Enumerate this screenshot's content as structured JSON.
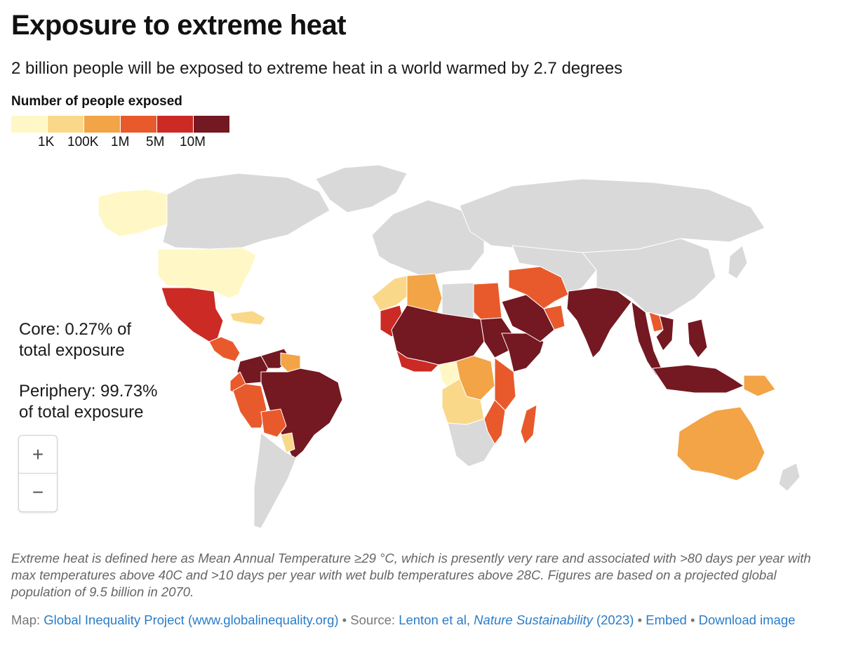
{
  "header": {
    "title": "Exposure to extreme heat",
    "subtitle": "2 billion people will be exposed to extreme heat in a world warmed by 2.7 degrees"
  },
  "legend": {
    "title": "Number of people exposed",
    "bins": [
      {
        "color": "#fff8c6"
      },
      {
        "color": "#fad88a"
      },
      {
        "color": "#f2a446"
      },
      {
        "color": "#e85a2c"
      },
      {
        "color": "#cc2a24"
      },
      {
        "color": "#741821"
      }
    ],
    "ticks": [
      "1K",
      "100K",
      "1M",
      "5M",
      "10M"
    ]
  },
  "colors": {
    "no_data": "#d9d9d9",
    "link": "#2a7cc7"
  },
  "annotations": {
    "core": "Core: 0.27% of total exposure",
    "periphery": "Periphery: 99.73% of total exposure"
  },
  "zoom": {
    "in_label": "+",
    "out_label": "−"
  },
  "footnote": "Extreme heat is defined here as Mean Annual Temperature ≥29 °C, which is presently very rare and associated with >80 days per year with max temperatures above 40C and >10 days per year with wet bulb temperatures above 28C. Figures are based on a projected global population of 9.5 billion in 2070.",
  "credits": {
    "map_prefix": "Map: ",
    "map_link": "Global Inequality Project (www.globalinequality.org)",
    "separator": " • ",
    "source_prefix": "Source: ",
    "source_link_a": "Lenton et al, ",
    "source_link_b": "Nature Sustainability",
    "source_link_c": " (2023)",
    "embed": "Embed",
    "download": "Download image"
  },
  "regions": [
    {
      "name": "Alaska",
      "bin": 0
    },
    {
      "name": "Canada",
      "bin": -1
    },
    {
      "name": "Greenland",
      "bin": -1
    },
    {
      "name": "United States",
      "bin": 0
    },
    {
      "name": "Mexico",
      "bin": 4
    },
    {
      "name": "Central America",
      "bin": 3
    },
    {
      "name": "Caribbean",
      "bin": 1
    },
    {
      "name": "Venezuela",
      "bin": 5
    },
    {
      "name": "Guianas",
      "bin": 2
    },
    {
      "name": "Colombia",
      "bin": 5
    },
    {
      "name": "Ecuador",
      "bin": 3
    },
    {
      "name": "Peru",
      "bin": 3
    },
    {
      "name": "Brazil",
      "bin": 5
    },
    {
      "name": "Bolivia",
      "bin": 3
    },
    {
      "name": "Paraguay",
      "bin": 1
    },
    {
      "name": "Southern Cone",
      "bin": -1
    },
    {
      "name": "Europe",
      "bin": -1
    },
    {
      "name": "Russia",
      "bin": -1
    },
    {
      "name": "Morocco / Western Sahara",
      "bin": 1
    },
    {
      "name": "Algeria",
      "bin": 2
    },
    {
      "name": "Libya",
      "bin": -1
    },
    {
      "name": "Egypt",
      "bin": 3
    },
    {
      "name": "Mauritania",
      "bin": 4
    },
    {
      "name": "Sahel and West Africa",
      "bin": 5
    },
    {
      "name": "Gulf of Guinea coast",
      "bin": 4
    },
    {
      "name": "Sudan",
      "bin": 5
    },
    {
      "name": "Horn of Africa",
      "bin": 5
    },
    {
      "name": "Central Africa",
      "bin": 2
    },
    {
      "name": "Gabon / Congo",
      "bin": 0
    },
    {
      "name": "Angola / Zambia",
      "bin": 1
    },
    {
      "name": "Kenya / Tanzania",
      "bin": 3
    },
    {
      "name": "Mozambique",
      "bin": 3
    },
    {
      "name": "Madagascar",
      "bin": 3
    },
    {
      "name": "Southern Africa",
      "bin": -1
    },
    {
      "name": "Saudi Arabia",
      "bin": 5
    },
    {
      "name": "Iran / Iraq",
      "bin": 3
    },
    {
      "name": "Oman / UAE",
      "bin": 3
    },
    {
      "name": "Central Asia",
      "bin": -1
    },
    {
      "name": "China",
      "bin": -1
    },
    {
      "name": "India",
      "bin": 5
    },
    {
      "name": "Myanmar / Thailand",
      "bin": 5
    },
    {
      "name": "Laos",
      "bin": 3
    },
    {
      "name": "Vietnam",
      "bin": 5
    },
    {
      "name": "Philippines",
      "bin": 5
    },
    {
      "name": "Indonesia",
      "bin": 5
    },
    {
      "name": "Papua New Guinea",
      "bin": 2
    },
    {
      "name": "Japan",
      "bin": -1
    },
    {
      "name": "Australia",
      "bin": 2
    },
    {
      "name": "New Zealand",
      "bin": -1
    }
  ]
}
